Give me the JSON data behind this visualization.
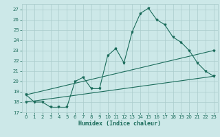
{
  "title": "",
  "xlabel": "Humidex (Indice chaleur)",
  "background_color": "#cce8e8",
  "grid_color": "#aacccc",
  "line_color": "#1a6b5a",
  "xlim": [
    -0.5,
    23.5
  ],
  "ylim": [
    17,
    27.5
  ],
  "yticks": [
    17,
    18,
    19,
    20,
    21,
    22,
    23,
    24,
    25,
    26,
    27
  ],
  "xticks": [
    0,
    1,
    2,
    3,
    4,
    5,
    6,
    7,
    8,
    9,
    10,
    11,
    12,
    13,
    14,
    15,
    16,
    17,
    18,
    19,
    20,
    21,
    22,
    23
  ],
  "main_line": [
    [
      0,
      18.7
    ],
    [
      1,
      18.0
    ],
    [
      2,
      18.0
    ],
    [
      3,
      17.5
    ],
    [
      4,
      17.5
    ],
    [
      5,
      17.5
    ],
    [
      6,
      20.0
    ],
    [
      7,
      20.4
    ],
    [
      8,
      19.3
    ],
    [
      9,
      19.3
    ],
    [
      10,
      22.5
    ],
    [
      11,
      23.2
    ],
    [
      12,
      21.8
    ],
    [
      13,
      24.8
    ],
    [
      14,
      26.6
    ],
    [
      15,
      27.1
    ],
    [
      16,
      26.0
    ],
    [
      17,
      25.5
    ],
    [
      18,
      24.3
    ],
    [
      19,
      23.8
    ],
    [
      20,
      23.0
    ],
    [
      21,
      21.8
    ],
    [
      22,
      21.0
    ],
    [
      23,
      20.5
    ]
  ],
  "lower_line": [
    [
      0,
      18.0
    ],
    [
      23,
      20.5
    ]
  ],
  "upper_line": [
    [
      0,
      18.7
    ],
    [
      23,
      23.0
    ]
  ],
  "tick_fontsize": 5.0,
  "xlabel_fontsize": 6.0,
  "marker_size": 2.0,
  "line_width": 0.8
}
